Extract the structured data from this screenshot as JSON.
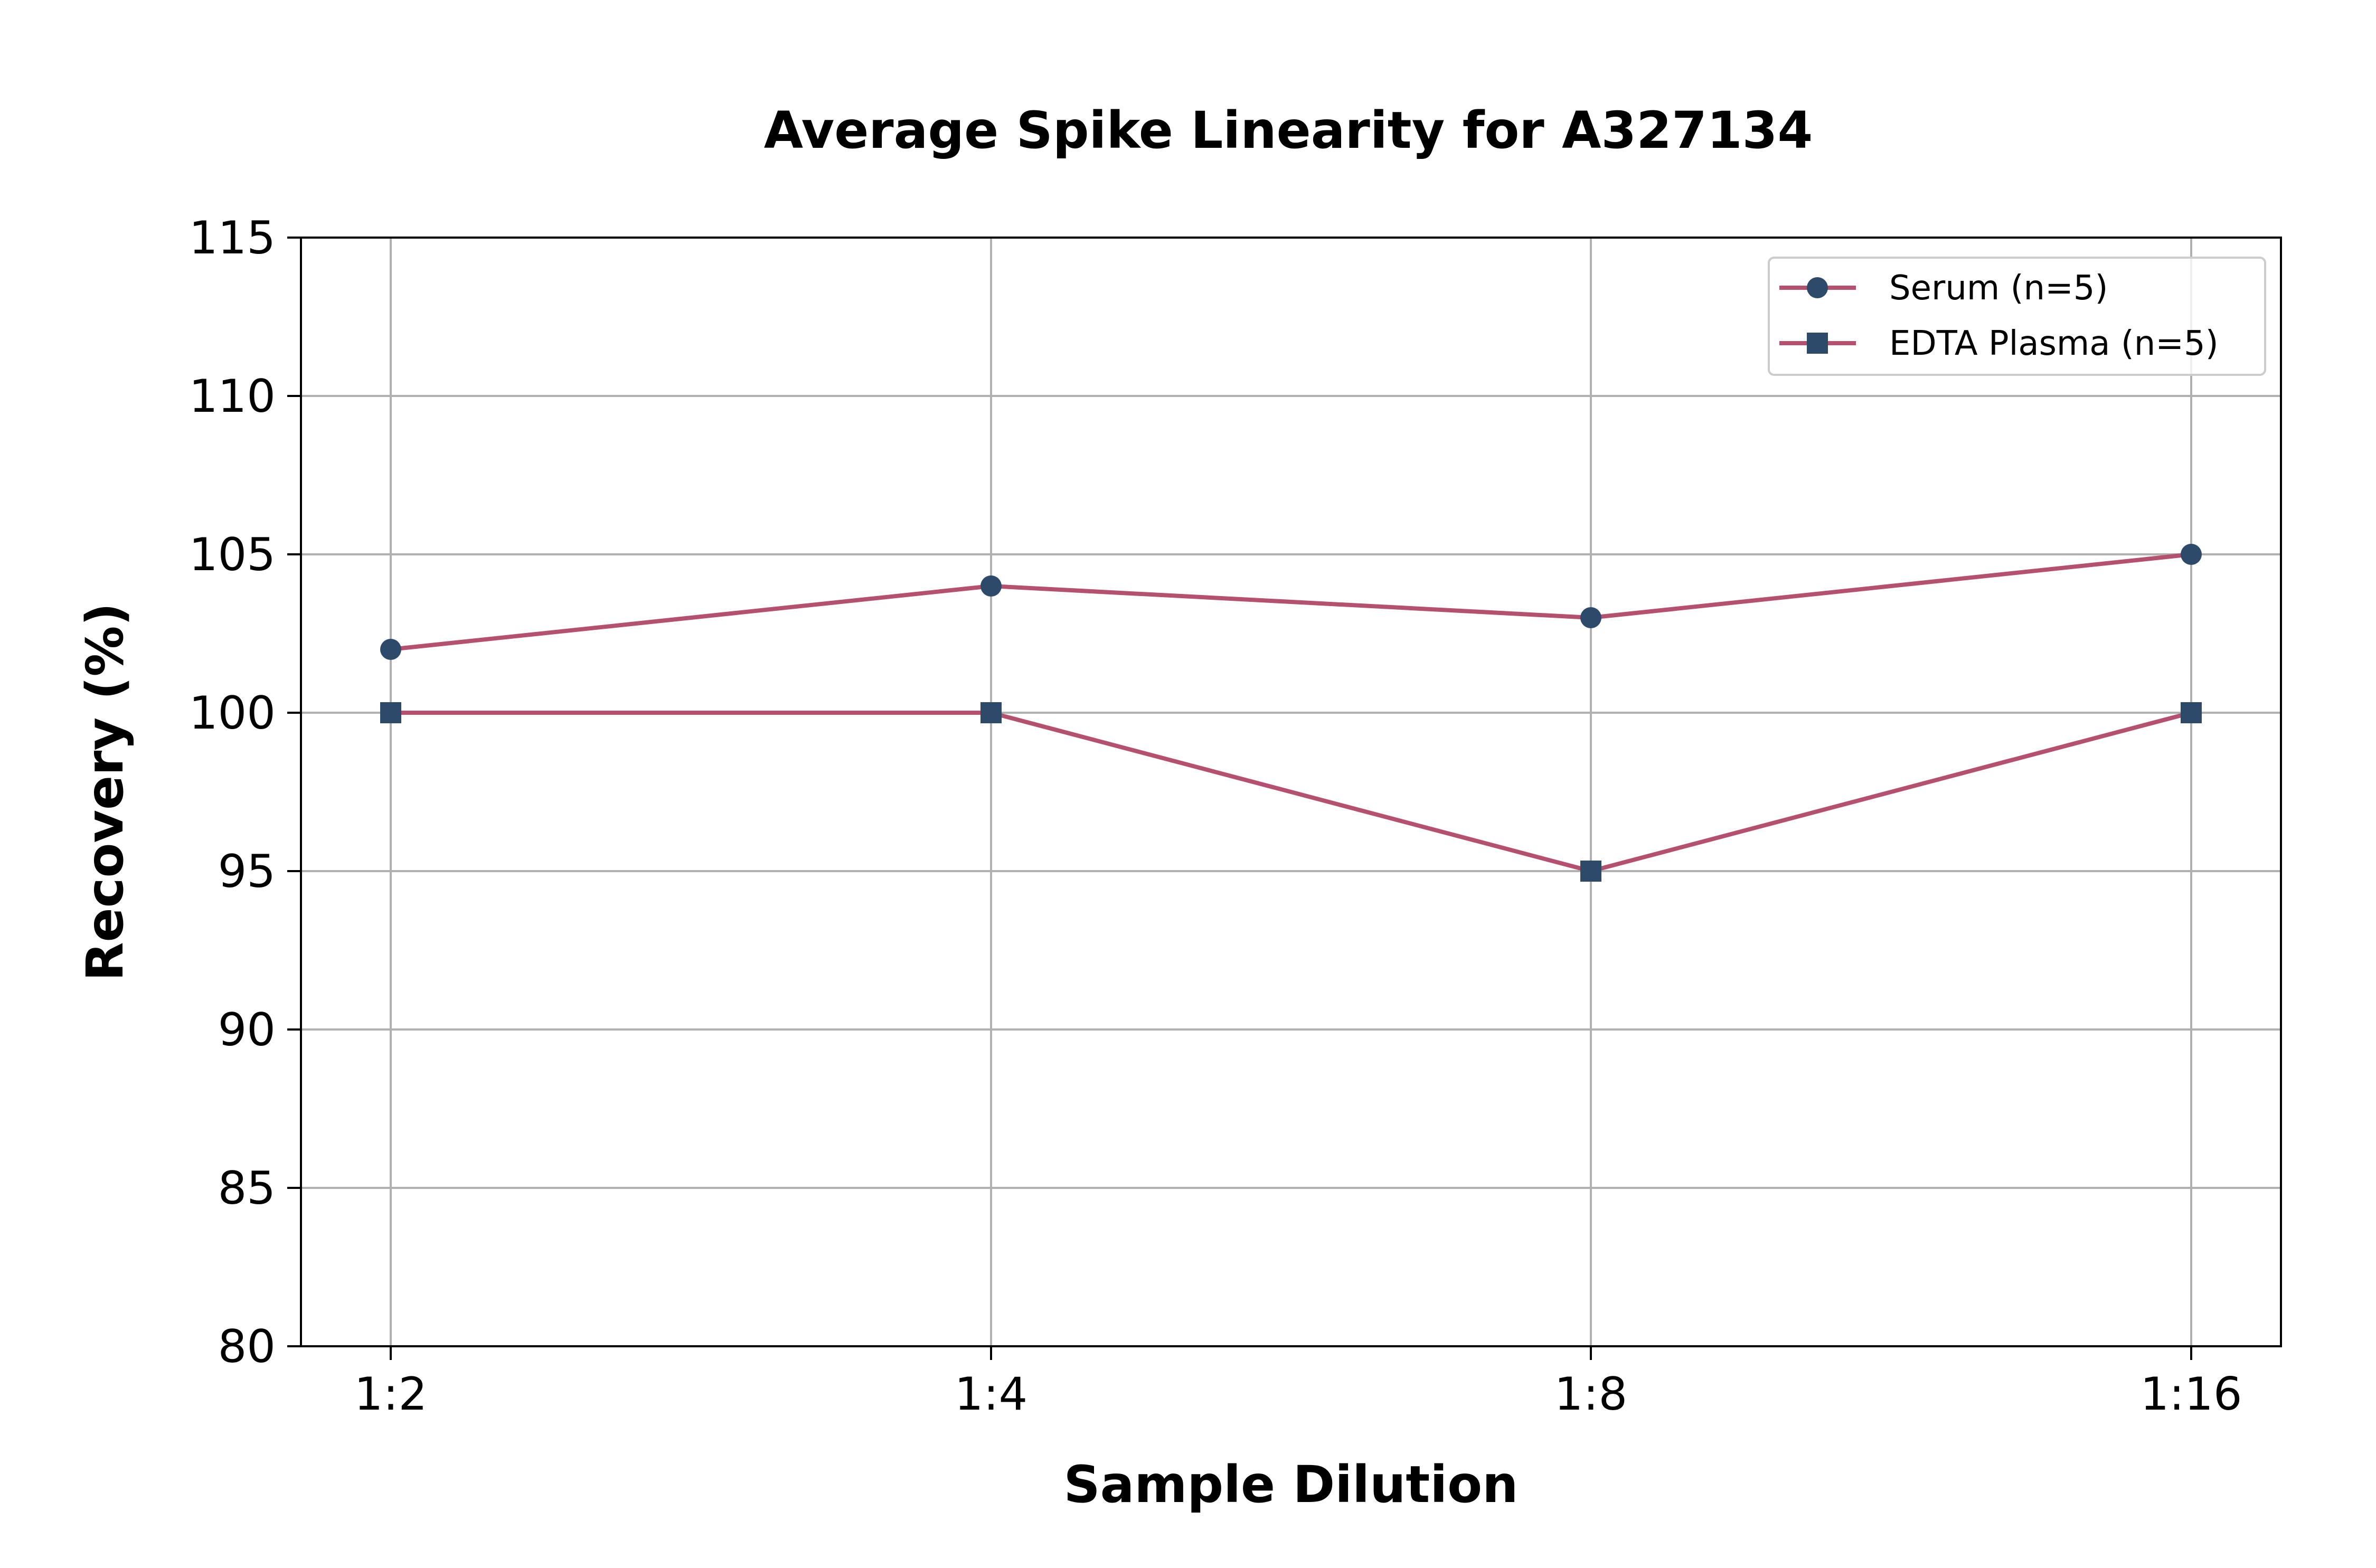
{
  "chart_data": {
    "type": "line",
    "title": "Average Spike Linearity for A327134",
    "xlabel": "Sample Dilution",
    "ylabel": "Recovery (%)",
    "categories": [
      "1:2",
      "1:4",
      "1:8",
      "1:16"
    ],
    "ylim": [
      80,
      115
    ],
    "yticks": [
      80,
      85,
      90,
      95,
      100,
      105,
      110,
      115
    ],
    "grid": true,
    "legend_position": "top-right",
    "series": [
      {
        "name": "Serum (n=5)",
        "marker": "circle",
        "values": [
          102,
          104,
          103,
          105
        ]
      },
      {
        "name": "EDTA Plasma (n=5)",
        "marker": "square",
        "values": [
          100,
          100,
          95,
          100
        ]
      }
    ],
    "colors": {
      "line": "#b5506f",
      "marker": "#2e4a6b"
    }
  }
}
